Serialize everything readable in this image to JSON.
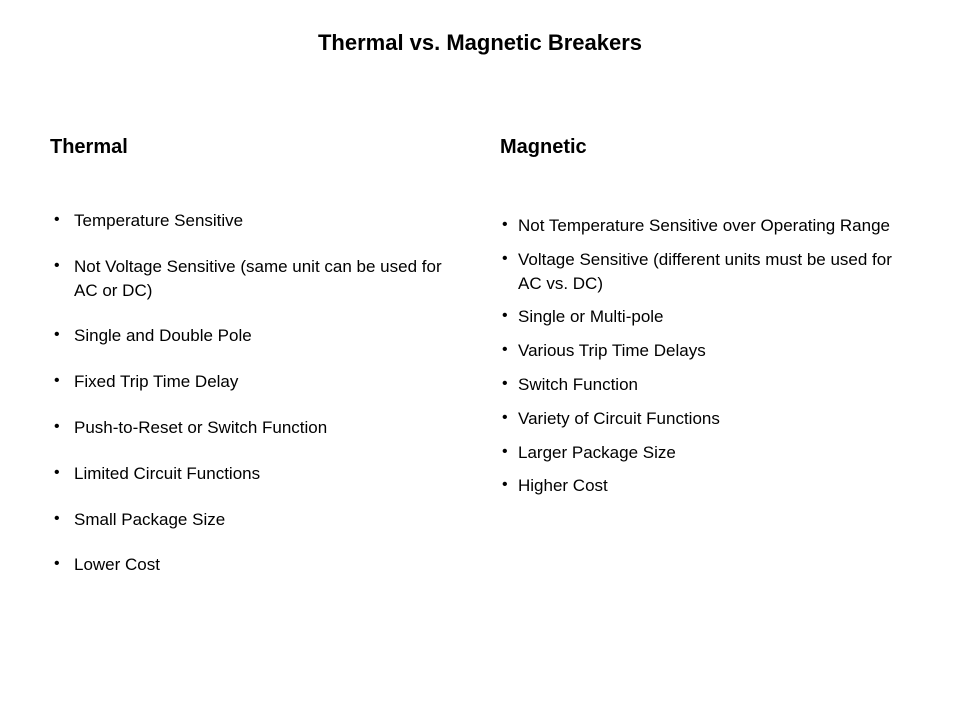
{
  "title": "Thermal vs. Magnetic Breakers",
  "left": {
    "heading": "Thermal",
    "items": [
      "Temperature Sensitive",
      "Not Voltage Sensitive (same unit can be used for AC or DC)",
      "Single and Double Pole",
      "Fixed Trip Time Delay",
      "Push-to-Reset or Switch Function",
      "Limited Circuit Functions",
      "Small Package Size",
      "Lower Cost"
    ]
  },
  "right": {
    "heading": "Magnetic",
    "items": [
      "Not Temperature Sensitive over Operating Range",
      "Voltage Sensitive (different units must be used for AC vs. DC)",
      "Single or Multi-pole",
      "Various Trip Time Delays",
      "Switch Function",
      "Variety of Circuit Functions",
      "Larger Package Size",
      "Higher Cost"
    ]
  },
  "styling": {
    "background_color": "#ffffff",
    "text_color": "#000000",
    "font_family": "Verdana",
    "title_fontsize": 22,
    "heading_fontsize": 20,
    "body_fontsize": 17,
    "left_item_spacing": 22,
    "right_item_spacing": 10
  }
}
